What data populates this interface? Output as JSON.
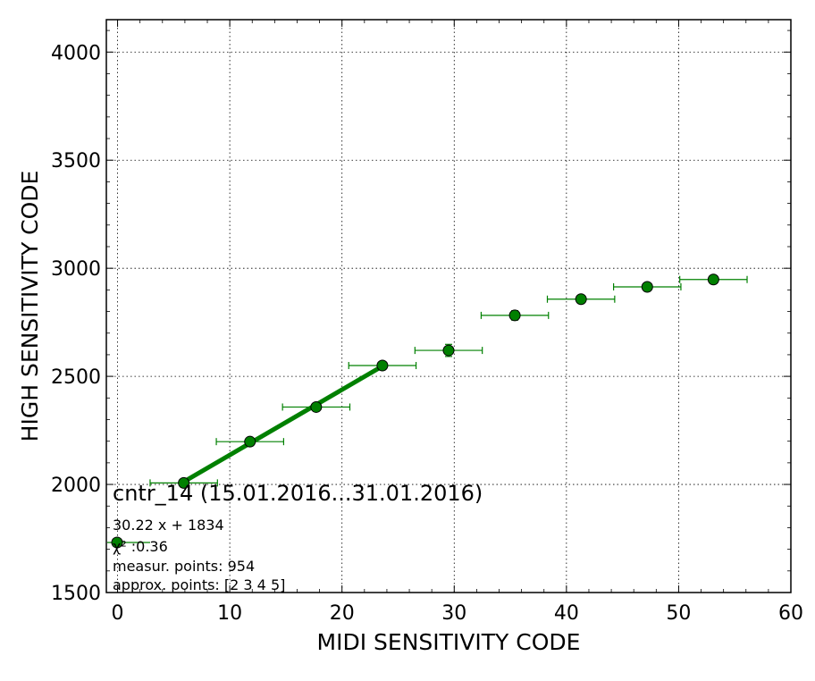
{
  "chart_data": {
    "type": "scatter",
    "xlabel": "MIDI SENSITIVITY CODE",
    "ylabel": "HIGH SENSITIVITY CODE",
    "xlim": [
      -1,
      60
    ],
    "ylim": [
      1500,
      4150
    ],
    "x_ticks": [
      "0",
      "10",
      "20",
      "30",
      "40",
      "50",
      "60"
    ],
    "y_ticks": [
      "1500",
      "2000",
      "2500",
      "3000",
      "3500",
      "4000"
    ],
    "grid": true,
    "colors": {
      "series": "#008000",
      "fit": "#008000"
    },
    "series": [
      {
        "x": [
          5.9,
          11.8,
          17.7,
          23.6,
          29.5,
          35.4,
          41.3,
          47.2,
          53.1
        ],
        "y": [
          2007,
          2198,
          2358,
          2550,
          2620,
          2782,
          2857,
          2914,
          2948
        ],
        "x_err": [
          3.0,
          3.0,
          3.0,
          3.0,
          3.0,
          3.0,
          3.0,
          3.0,
          3.0
        ],
        "y_err": [
          12,
          12,
          14,
          16,
          28,
          22,
          14,
          12,
          10
        ]
      }
    ],
    "fit": {
      "slope": 30.22,
      "intercept": 1834,
      "x_range": [
        5.9,
        23.6
      ]
    },
    "annotation": {
      "title": "cntr_14 (15.01.2016...31.01.2016)",
      "fit_label": "30.22 x + 1834",
      "chi2_label": "χ² :0.36",
      "measur_label": "measur. points: 954",
      "approx_label": "approx. points: [2 3 4 5]"
    }
  }
}
